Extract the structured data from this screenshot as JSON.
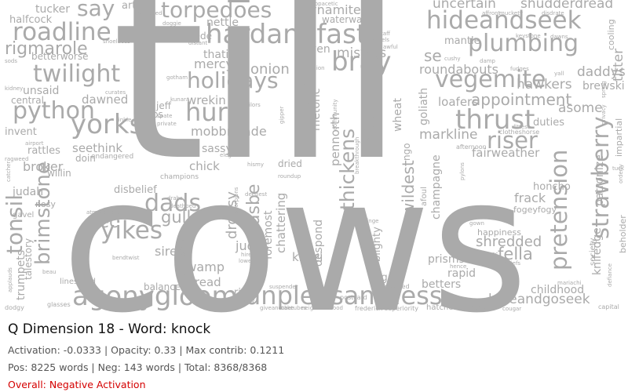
{
  "info": {
    "title": "Q Dimension 18 - Word: knock",
    "activation_line": "Activation: -0.0333 | Opacity: 0.33 | Max contrib: 0.1211",
    "counts_line": "Pos: 8225 words | Neg: 143 words | Total: 8368/8368",
    "overall_line": "Overall: Negative Activation",
    "overall_color": "#d40000"
  },
  "cloud": {
    "word_color": "#aaaaaa",
    "words": [
      {
        "text": "cows",
        "weight": 100
      },
      {
        "text": "till",
        "weight": 95
      },
      {
        "text": "agonygloom",
        "weight": 34
      },
      {
        "text": "unpleasantness",
        "weight": 33
      },
      {
        "text": "hardandfast",
        "weight": 30
      },
      {
        "text": "roadline",
        "weight": 26
      },
      {
        "text": "twilight",
        "weight": 25
      },
      {
        "text": "python",
        "weight": 25
      },
      {
        "text": "yorks",
        "weight": 25
      },
      {
        "text": "yikes",
        "weight": 26
      },
      {
        "text": "holidays",
        "weight": 24
      },
      {
        "text": "hurts",
        "weight": 24
      },
      {
        "text": "dads",
        "weight": 24
      },
      {
        "text": "torpedoes",
        "weight": 22
      },
      {
        "text": "hideandseek",
        "weight": 26
      },
      {
        "text": "plumbing",
        "weight": 27
      },
      {
        "text": "vegemite",
        "weight": 26
      },
      {
        "text": "thrust",
        "weight": 26
      },
      {
        "text": "bray",
        "weight": 26
      },
      {
        "text": "riser",
        "weight": 24
      },
      {
        "text": "tonsil",
        "weight": 24
      },
      {
        "text": "brimstone",
        "weight": 22
      },
      {
        "text": "pretension",
        "weight": 22
      },
      {
        "text": "strawberry",
        "weight": 24
      },
      {
        "text": "thickens",
        "weight": 22
      },
      {
        "text": "say",
        "weight": 20
      },
      {
        "text": "rigmarole",
        "weight": 17
      },
      {
        "text": "appointment",
        "weight": 17
      },
      {
        "text": "wildest",
        "weight": 17
      },
      {
        "text": "gullet",
        "weight": 17
      },
      {
        "text": "fella",
        "weight": 16
      },
      {
        "text": "rec",
        "weight": 16
      },
      {
        "text": "shredded",
        "weight": 16
      },
      {
        "text": "hideandgoseek",
        "weight": 15
      },
      {
        "text": "uncertain",
        "weight": 13
      },
      {
        "text": "shudderdread",
        "weight": 14
      },
      {
        "text": "asbe",
        "weight": 16
      },
      {
        "text": "dropsy",
        "weight": 14
      },
      {
        "text": "dynamite",
        "weight": 12
      },
      {
        "text": "misters",
        "weight": 12
      },
      {
        "text": "mercys",
        "weight": 12
      },
      {
        "text": "onion",
        "weight": 12
      },
      {
        "text": "se",
        "weight": 14
      },
      {
        "text": "roundabouts",
        "weight": 12
      },
      {
        "text": "hawkers",
        "weight": 12
      },
      {
        "text": "daddys",
        "weight": 11
      },
      {
        "text": "titter",
        "weight": 12
      },
      {
        "text": "brewski",
        "weight": 10
      },
      {
        "text": "loafers",
        "weight": 10
      },
      {
        "text": "asome",
        "weight": 12
      },
      {
        "text": "markline",
        "weight": 12
      },
      {
        "text": "fairweather",
        "weight": 11
      },
      {
        "text": "wrekin",
        "weight": 11
      },
      {
        "text": "dawned",
        "weight": 11
      },
      {
        "text": "seethink",
        "weight": 11
      },
      {
        "text": "unsaid",
        "weight": 11
      },
      {
        "text": "broker",
        "weight": 11
      },
      {
        "text": "chick",
        "weight": 11
      },
      {
        "text": "judah",
        "weight": 10
      },
      {
        "text": "judas",
        "weight": 11
      },
      {
        "text": "siree",
        "weight": 11
      },
      {
        "text": "swamp",
        "weight": 11
      },
      {
        "text": "tread",
        "weight": 11
      },
      {
        "text": "khazi",
        "weight": 11
      },
      {
        "text": "bilge",
        "weight": 10
      },
      {
        "text": "rapid",
        "weight": 10
      },
      {
        "text": "prisms",
        "weight": 10
      },
      {
        "text": "betters",
        "weight": 10
      },
      {
        "text": "childhood",
        "weight": 11
      },
      {
        "text": "frack",
        "weight": 10
      },
      {
        "text": "champagne",
        "weight": 10
      },
      {
        "text": "knifedge",
        "weight": 10
      },
      {
        "text": "patronize",
        "weight": 10
      },
      {
        "text": "mobbrigade",
        "weight": 10
      },
      {
        "text": "sassy",
        "weight": 9
      },
      {
        "text": "nettle",
        "weight": 9
      },
      {
        "text": "rede",
        "weight": 8
      },
      {
        "text": "thatit",
        "weight": 9
      },
      {
        "text": "yen",
        "weight": 9
      },
      {
        "text": "trumpets",
        "weight": 10
      },
      {
        "text": "talestory",
        "weight": 9
      },
      {
        "text": "goliath",
        "weight": 9
      },
      {
        "text": "pennorth",
        "weight": 10
      },
      {
        "text": "buzzard",
        "weight": 10
      },
      {
        "text": "rhetoric",
        "weight": 9
      },
      {
        "text": "sidenote",
        "weight": 10
      },
      {
        "text": "wheat",
        "weight": 9
      },
      {
        "text": "chattering",
        "weight": 10
      },
      {
        "text": "foremost",
        "weight": 9
      },
      {
        "text": "despond",
        "weight": 9
      },
      {
        "text": "blighty",
        "weight": 9
      },
      {
        "text": "duties",
        "weight": 9
      },
      {
        "text": "honcho",
        "weight": 9
      },
      {
        "text": "mantle",
        "weight": 9
      },
      {
        "text": "tucker",
        "weight": 9
      },
      {
        "text": "halfcock",
        "weight": 8
      },
      {
        "text": "betterworse",
        "weight": 8
      },
      {
        "text": "central",
        "weight": 8
      },
      {
        "text": "rattles",
        "weight": 8
      },
      {
        "text": "invent",
        "weight": 8
      },
      {
        "text": "willin",
        "weight": 8
      },
      {
        "text": "doin",
        "weight": 8
      },
      {
        "text": "nosy",
        "weight": 7
      },
      {
        "text": "disbelief",
        "weight": 8
      },
      {
        "text": "crabs",
        "weight": 8
      },
      {
        "text": "jeff",
        "weight": 8
      },
      {
        "text": "dried",
        "weight": 8
      },
      {
        "text": "fogeyfogy",
        "weight": 7
      },
      {
        "text": "ngo",
        "weight": 7
      },
      {
        "text": "rig",
        "weight": 8
      },
      {
        "text": "balances",
        "weight": 8
      },
      {
        "text": "happiness",
        "weight": 7
      },
      {
        "text": "beholder",
        "weight": 8
      },
      {
        "text": "cooling",
        "weight": 8
      },
      {
        "text": "impartial",
        "weight": 7
      },
      {
        "text": "arts",
        "weight": 8
      },
      {
        "text": "waterwaters",
        "weight": 8
      },
      {
        "text": "endangered",
        "weight": 7
      },
      {
        "text": "champions",
        "weight": 7
      },
      {
        "text": "linestand",
        "weight": 7
      },
      {
        "text": "society",
        "weight": 7
      },
      {
        "text": "hatches",
        "weight": 7
      },
      {
        "text": "muss",
        "weight": 7
      },
      {
        "text": "afoul",
        "weight": 7
      },
      {
        "text": "clotheshorse",
        "weight": 6
      },
      {
        "text": "afternoon",
        "weight": 6
      },
      {
        "text": "gavel",
        "weight": 7
      },
      {
        "text": "postcard",
        "weight": 6
      },
      {
        "text": "cleaned",
        "weight": 6
      },
      {
        "text": "suspender",
        "weight": 6
      },
      {
        "text": "neighbourhood",
        "weight": 6
      },
      {
        "text": "frederick",
        "weight": 6
      },
      {
        "text": "superiority",
        "weight": 6
      },
      {
        "text": "tubetubes",
        "weight": 6
      },
      {
        "text": "giveandtake",
        "weight": 6
      },
      {
        "text": "capital",
        "weight": 6
      },
      {
        "text": "cougar",
        "weight": 6
      },
      {
        "text": "defiance",
        "weight": 6
      },
      {
        "text": "mariachi",
        "weight": 6
      },
      {
        "text": "glasses",
        "weight": 6
      },
      {
        "text": "dodgy",
        "weight": 6
      },
      {
        "text": "applauds",
        "weight": 6
      },
      {
        "text": "copacetic",
        "weight": 6
      },
      {
        "text": "converted",
        "weight": 6
      },
      {
        "text": "affront",
        "weight": 6
      },
      {
        "text": "muckety",
        "weight": 6
      },
      {
        "text": "disdrate",
        "weight": 6
      },
      {
        "text": "shoelaces",
        "weight": 6
      },
      {
        "text": "doggie",
        "weight": 6
      },
      {
        "text": "distant",
        "weight": 6
      },
      {
        "text": "keystone",
        "weight": 6
      },
      {
        "text": "dawns",
        "weight": 6
      },
      {
        "text": "pikestaff",
        "weight": 6
      },
      {
        "text": "chattels",
        "weight": 6
      },
      {
        "text": "awful",
        "weight": 6
      },
      {
        "text": "community",
        "weight": 6
      },
      {
        "text": "engagement",
        "weight": 6
      },
      {
        "text": "breakthrough",
        "weight": 6
      },
      {
        "text": "sods",
        "weight": 6
      },
      {
        "text": "kidney",
        "weight": 6
      },
      {
        "text": "curates",
        "weight": 6
      },
      {
        "text": "spate",
        "weight": 6
      },
      {
        "text": "private",
        "weight": 6
      },
      {
        "text": "tailors",
        "weight": 6
      },
      {
        "text": "gipper",
        "weight": 6
      },
      {
        "text": "gotham",
        "weight": 6
      },
      {
        "text": "kunara",
        "weight": 6
      },
      {
        "text": "tinkle",
        "weight": 6
      },
      {
        "text": "ragweed",
        "weight": 6
      },
      {
        "text": "union",
        "weight": 6
      },
      {
        "text": "roundup",
        "weight": 6
      },
      {
        "text": "elegant",
        "weight": 6
      },
      {
        "text": "pylons",
        "weight": 6
      },
      {
        "text": "privacy",
        "weight": 6
      },
      {
        "text": "spring",
        "weight": 6
      },
      {
        "text": "fudges",
        "weight": 6
      },
      {
        "text": "fittest",
        "weight": 6
      },
      {
        "text": "cushy",
        "weight": 6
      },
      {
        "text": "damp",
        "weight": 6
      },
      {
        "text": "yall",
        "weight": 6
      },
      {
        "text": "deepest",
        "weight": 6
      },
      {
        "text": "scorpions",
        "weight": 6
      },
      {
        "text": "hired",
        "weight": 6
      },
      {
        "text": "lowered",
        "weight": 6
      },
      {
        "text": "steady",
        "weight": 6
      },
      {
        "text": "atmosphere",
        "weight": 6
      },
      {
        "text": "drabs",
        "weight": 6
      },
      {
        "text": "deathbed",
        "weight": 6
      },
      {
        "text": "bendtwist",
        "weight": 6
      },
      {
        "text": "beau",
        "weight": 6
      },
      {
        "text": "maxit",
        "weight": 6
      },
      {
        "text": "potomac",
        "weight": 6
      },
      {
        "text": "hence",
        "weight": 6
      },
      {
        "text": "beliefs",
        "weight": 6
      },
      {
        "text": "gown",
        "weight": 6
      },
      {
        "text": "cosby",
        "weight": 6
      },
      {
        "text": "hismy",
        "weight": 6
      },
      {
        "text": "fringe",
        "weight": 6
      },
      {
        "text": "tuck",
        "weight": 6
      },
      {
        "text": "orderly",
        "weight": 6
      },
      {
        "text": "catcher",
        "weight": 6
      },
      {
        "text": "airport",
        "weight": 6
      },
      {
        "text": "jaws",
        "weight": 6
      }
    ]
  }
}
